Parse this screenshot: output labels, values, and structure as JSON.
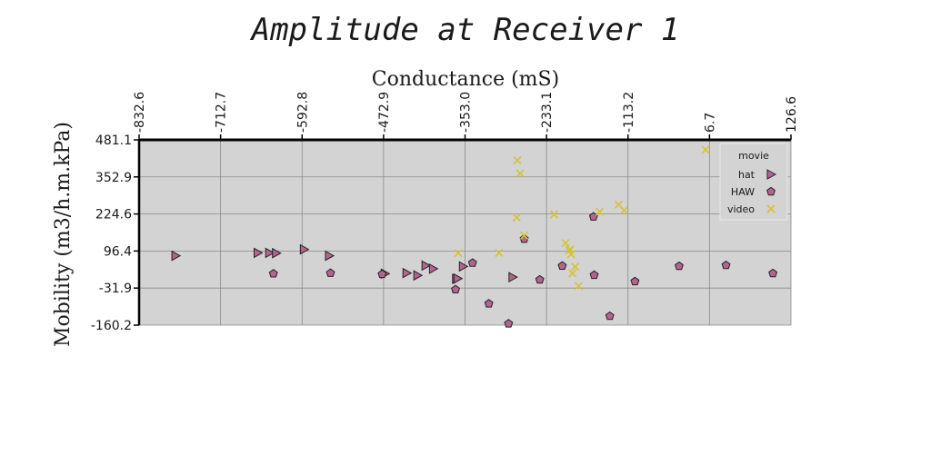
{
  "chart_data": {
    "type": "scatter",
    "title": "Amplitude at Receiver 1",
    "xlabel": "Conductance (mS)",
    "ylabel": "Mobility (m3/h.m.kPa)",
    "xlim": [
      -832.6,
      126.6
    ],
    "ylim": [
      -160.2,
      481.1
    ],
    "x_ticks": [
      -832.6,
      -712.7,
      -592.8,
      -472.9,
      -353.0,
      -233.1,
      -113.2,
      6.7,
      126.6
    ],
    "x_tick_labels": [
      "-832.6",
      "-712.7",
      "-592.8",
      "-472.9",
      "-353.0",
      "-233.1",
      "-113.2",
      "6.7",
      "126.6"
    ],
    "y_ticks": [
      481.1,
      352.9,
      224.6,
      96.4,
      -31.9,
      -160.2
    ],
    "y_tick_labels": [
      "481.1",
      "352.9",
      "224.6",
      "96.4",
      "-31.9",
      "-160.2"
    ],
    "x_axis_position": "top",
    "grid": true,
    "legend_title": "movie",
    "legend_position": "top-right",
    "background": "#d3d3d3",
    "series": [
      {
        "name": "hat",
        "marker": "triangle-right",
        "color": "#b5648f",
        "points": [
          [
            -779,
            80
          ],
          [
            -658,
            90
          ],
          [
            -641,
            90
          ],
          [
            -631,
            89
          ],
          [
            -590,
            102
          ],
          [
            -553,
            80
          ],
          [
            -471,
            18
          ],
          [
            -439,
            20
          ],
          [
            -423,
            12
          ],
          [
            -411,
            46
          ],
          [
            -400,
            35
          ],
          [
            -366,
            0
          ],
          [
            -364,
            1
          ],
          [
            -356,
            43
          ],
          [
            -283,
            6
          ]
        ]
      },
      {
        "name": "HAW",
        "marker": "pentagon",
        "color": "#b5648f",
        "points": [
          [
            -635,
            18
          ],
          [
            -551,
            20
          ],
          [
            -475,
            16
          ],
          [
            -367,
            -37
          ],
          [
            -342,
            55
          ],
          [
            -318,
            -86
          ],
          [
            -289,
            -155
          ],
          [
            -266,
            138
          ],
          [
            -243,
            -3
          ],
          [
            -210,
            45
          ],
          [
            -164,
            215
          ],
          [
            -163,
            13
          ],
          [
            -140,
            -129
          ],
          [
            -103,
            -9
          ],
          [
            -38,
            44
          ],
          [
            31,
            47
          ],
          [
            100,
            19
          ]
        ]
      },
      {
        "name": "video",
        "marker": "x",
        "color": "#d4c236",
        "points": [
          [
            -363,
            89
          ],
          [
            -303,
            90
          ],
          [
            -266,
            150
          ],
          [
            -276,
            410
          ],
          [
            -272,
            365
          ],
          [
            -277,
            212
          ],
          [
            -222,
            223
          ],
          [
            -205,
            124
          ],
          [
            -200,
            98
          ],
          [
            -198,
            102
          ],
          [
            -197,
            85
          ],
          [
            -195,
            19
          ],
          [
            -191,
            42
          ],
          [
            -186,
            -25
          ],
          [
            -155,
            232
          ],
          [
            -127,
            257
          ],
          [
            -119,
            237
          ],
          [
            1,
            447
          ]
        ]
      }
    ]
  }
}
